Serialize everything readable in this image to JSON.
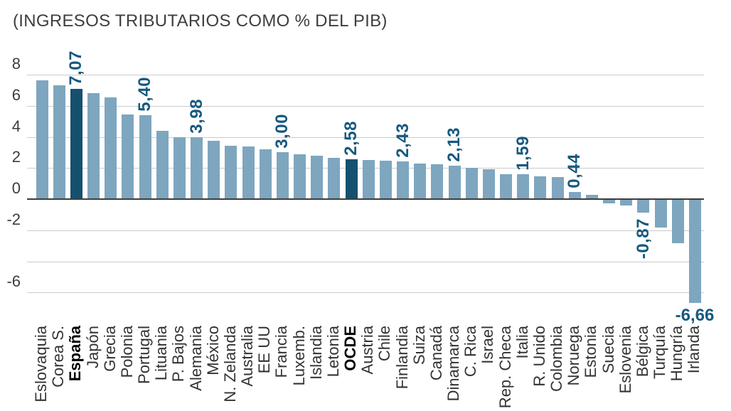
{
  "title": "(INGRESOS TRIBUTARIOS COMO % DEL PIB)",
  "colors": {
    "bar": "#7ea6bf",
    "bar_highlight": "#15506e",
    "annotation": "#16597e",
    "grid": "#cccccc",
    "zero_line": "#3d3d3d",
    "text": "#3d3d3d",
    "category_text": "#333333"
  },
  "chart_data": {
    "type": "bar",
    "title": "(INGRESOS TRIBUTARIOS COMO % DEL PIB)",
    "xlabel": "",
    "ylabel": "",
    "ylim": [
      -7.6,
      8.6
    ],
    "grid": true,
    "ytick_values": [
      8,
      6,
      4,
      2,
      0,
      -2,
      -6
    ],
    "ytick_labels": [
      "8",
      "6",
      "4",
      "2",
      "0",
      "-2",
      "-6"
    ],
    "gridline_values": [
      8,
      6,
      4,
      2,
      0,
      -2,
      -4,
      -6
    ],
    "categories": [
      "Eslovaquia",
      "Corea S.",
      "España",
      "Japón",
      "Grecia",
      "Polonia",
      "Portugal",
      "Lituania",
      "P. Bajos",
      "Alemania",
      "México",
      "N. Zelanda",
      "Australia",
      "EE UU",
      "Francia",
      "Luxemb.",
      "Islandia",
      "Letonia",
      "OCDE",
      "Austria",
      "Chile",
      "Finlandia",
      "Suiza",
      "Canadá",
      "Dinamarca",
      "C. Rica",
      "Israel",
      "Rep. Checa",
      "Italia",
      "R. Unido",
      "Colombia",
      "Noruega",
      "Estonia",
      "Suecia",
      "Eslovenia",
      "Bélgica",
      "Turquía",
      "Hungría",
      "Irlanda"
    ],
    "values": [
      7.65,
      7.3,
      7.07,
      6.8,
      6.55,
      5.45,
      5.4,
      4.4,
      4.0,
      3.98,
      3.75,
      3.45,
      3.4,
      3.2,
      3.0,
      2.9,
      2.8,
      2.65,
      2.58,
      2.5,
      2.45,
      2.43,
      2.3,
      2.25,
      2.13,
      2.0,
      1.9,
      1.6,
      1.59,
      1.45,
      1.4,
      0.44,
      0.28,
      -0.28,
      -0.4,
      -0.87,
      -1.85,
      -2.85,
      -6.66
    ],
    "value_labels": [
      null,
      null,
      "7,07",
      null,
      null,
      null,
      "5,40",
      null,
      null,
      "3,98",
      null,
      null,
      null,
      null,
      "3,00",
      null,
      null,
      null,
      "2,58",
      null,
      null,
      "2,43",
      null,
      null,
      "2,13",
      null,
      null,
      null,
      "1,59",
      null,
      null,
      "0,44",
      null,
      null,
      null,
      "-0,87",
      null,
      null,
      "-6,66"
    ],
    "horizontal_value_label_indices": [
      38
    ],
    "highlight_indices": [
      2,
      18
    ],
    "legend": null
  }
}
